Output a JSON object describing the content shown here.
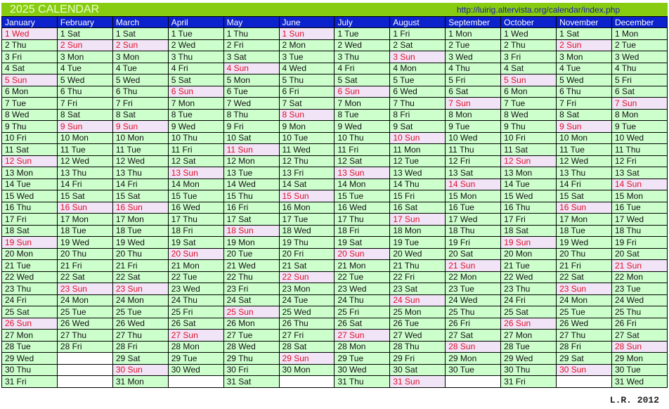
{
  "title": "2025 CALENDAR",
  "url": "http://luirig.altervista.org/calendar/index.php",
  "footer": "L.R. 2012",
  "colors": {
    "title_bar": "#88cc11",
    "header": "#0b22cc",
    "weekday_cell": "#ccffcc",
    "sunday_cell": "#f0e4f6",
    "sunday_text": "#e0102a"
  },
  "holidays": [
    {
      "month": 0,
      "label": "1 Wed"
    }
  ],
  "months": [
    {
      "name": "January",
      "days": [
        "1 Wed",
        "2 Thu",
        "3 Fri",
        "4 Sat",
        "5 Sun",
        "6 Mon",
        "7 Tue",
        "8 Wed",
        "9 Thu",
        "10 Fri",
        "11 Sat",
        "12 Sun",
        "13 Mon",
        "14 Tue",
        "15 Wed",
        "16 Thu",
        "17 Fri",
        "18 Sat",
        "19 Sun",
        "20 Mon",
        "21 Tue",
        "22 Wed",
        "23 Thu",
        "24 Fri",
        "25 Sat",
        "26 Sun",
        "27 Mon",
        "28 Tue",
        "29 Wed",
        "30 Thu",
        "31 Fri"
      ]
    },
    {
      "name": "February",
      "days": [
        "1 Sat",
        "2 Sun",
        "3 Mon",
        "4 Tue",
        "5 Wed",
        "6 Thu",
        "7 Fri",
        "8 Sat",
        "9 Sun",
        "10 Mon",
        "11 Tue",
        "12 Wed",
        "13 Thu",
        "14 Fri",
        "15 Sat",
        "16 Sun",
        "17 Mon",
        "18 Tue",
        "19 Wed",
        "20 Thu",
        "21 Fri",
        "22 Sat",
        "23 Sun",
        "24 Mon",
        "25 Tue",
        "26 Wed",
        "27 Thu",
        "28 Fri"
      ]
    },
    {
      "name": "March",
      "days": [
        "1 Sat",
        "2 Sun",
        "3 Mon",
        "4 Tue",
        "5 Wed",
        "6 Thu",
        "7 Fri",
        "8 Sat",
        "9 Sun",
        "10 Mon",
        "11 Tue",
        "12 Wed",
        "13 Thu",
        "14 Fri",
        "15 Sat",
        "16 Sun",
        "17 Mon",
        "18 Tue",
        "19 Wed",
        "20 Thu",
        "21 Fri",
        "22 Sat",
        "23 Sun",
        "24 Mon",
        "25 Tue",
        "26 Wed",
        "27 Thu",
        "28 Fri",
        "29 Sat",
        "30 Sun",
        "31 Mon"
      ]
    },
    {
      "name": "April",
      "days": [
        "1 Tue",
        "2 Wed",
        "3 Thu",
        "4 Fri",
        "5 Sat",
        "6 Sun",
        "7 Mon",
        "8 Tue",
        "9 Wed",
        "10 Thu",
        "11 Fri",
        "12 Sat",
        "13 Sun",
        "14 Mon",
        "15 Tue",
        "16 Wed",
        "17 Thu",
        "18 Fri",
        "19 Sat",
        "20 Sun",
        "21 Mon",
        "22 Tue",
        "23 Wed",
        "24 Thu",
        "25 Fri",
        "26 Sat",
        "27 Sun",
        "28 Mon",
        "29 Tue",
        "30 Wed"
      ]
    },
    {
      "name": "May",
      "days": [
        "1 Thu",
        "2 Fri",
        "3 Sat",
        "4 Sun",
        "5 Mon",
        "6 Tue",
        "7 Wed",
        "8 Thu",
        "9 Fri",
        "10 Sat",
        "11 Sun",
        "12 Mon",
        "13 Tue",
        "14 Wed",
        "15 Thu",
        "16 Fri",
        "17 Sat",
        "18 Sun",
        "19 Mon",
        "20 Tue",
        "21 Wed",
        "22 Thu",
        "23 Fri",
        "24 Sat",
        "25 Sun",
        "26 Mon",
        "27 Tue",
        "28 Wed",
        "29 Thu",
        "30 Fri",
        "31 Sat"
      ]
    },
    {
      "name": "June",
      "days": [
        "1 Sun",
        "2 Mon",
        "3 Tue",
        "4 Wed",
        "5 Thu",
        "6 Fri",
        "7 Sat",
        "8 Sun",
        "9 Mon",
        "10 Tue",
        "11 Wed",
        "12 Thu",
        "13 Fri",
        "14 Sat",
        "15 Sun",
        "16 Mon",
        "17 Tue",
        "18 Wed",
        "19 Thu",
        "20 Fri",
        "21 Sat",
        "22 Sun",
        "23 Mon",
        "24 Tue",
        "25 Wed",
        "26 Thu",
        "27 Fri",
        "28 Sat",
        "29 Sun",
        "30 Mon"
      ]
    },
    {
      "name": "July",
      "days": [
        "1 Tue",
        "2 Wed",
        "3 Thu",
        "4 Fri",
        "5 Sat",
        "6 Sun",
        "7 Mon",
        "8 Tue",
        "9 Wed",
        "10 Thu",
        "11 Fri",
        "12 Sat",
        "13 Sun",
        "14 Mon",
        "15 Tue",
        "16 Wed",
        "17 Thu",
        "18 Fri",
        "19 Sat",
        "20 Sun",
        "21 Mon",
        "22 Tue",
        "23 Wed",
        "24 Thu",
        "25 Fri",
        "26 Sat",
        "27 Sun",
        "28 Mon",
        "29 Tue",
        "30 Wed",
        "31 Thu"
      ]
    },
    {
      "name": "August",
      "days": [
        "1 Fri",
        "2 Sat",
        "3 Sun",
        "4 Mon",
        "5 Tue",
        "6 Wed",
        "7 Thu",
        "8 Fri",
        "9 Sat",
        "10 Sun",
        "11 Mon",
        "12 Tue",
        "13 Wed",
        "14 Thu",
        "15 Fri",
        "16 Sat",
        "17 Sun",
        "18 Mon",
        "19 Tue",
        "20 Wed",
        "21 Thu",
        "22 Fri",
        "23 Sat",
        "24 Sun",
        "25 Mon",
        "26 Tue",
        "27 Wed",
        "28 Thu",
        "29 Fri",
        "30 Sat",
        "31 Sun"
      ]
    },
    {
      "name": "September",
      "days": [
        "1 Mon",
        "2 Tue",
        "3 Wed",
        "4 Thu",
        "5 Fri",
        "6 Sat",
        "7 Sun",
        "8 Mon",
        "9 Tue",
        "10 Wed",
        "11 Thu",
        "12 Fri",
        "13 Sat",
        "14 Sun",
        "15 Mon",
        "16 Tue",
        "17 Wed",
        "18 Thu",
        "19 Fri",
        "20 Sat",
        "21 Sun",
        "22 Mon",
        "23 Tue",
        "24 Wed",
        "25 Thu",
        "26 Fri",
        "27 Sat",
        "28 Sun",
        "29 Mon",
        "30 Tue"
      ]
    },
    {
      "name": "October",
      "days": [
        "1 Wed",
        "2 Thu",
        "3 Fri",
        "4 Sat",
        "5 Sun",
        "6 Mon",
        "7 Tue",
        "8 Wed",
        "9 Thu",
        "10 Fri",
        "11 Sat",
        "12 Sun",
        "13 Mon",
        "14 Tue",
        "15 Wed",
        "16 Thu",
        "17 Fri",
        "18 Sat",
        "19 Sun",
        "20 Mon",
        "21 Tue",
        "22 Wed",
        "23 Thu",
        "24 Fri",
        "25 Sat",
        "26 Sun",
        "27 Mon",
        "28 Tue",
        "29 Wed",
        "30 Thu",
        "31 Fri"
      ]
    },
    {
      "name": "November",
      "days": [
        "1 Sat",
        "2 Sun",
        "3 Mon",
        "4 Tue",
        "5 Wed",
        "6 Thu",
        "7 Fri",
        "8 Sat",
        "9 Sun",
        "10 Mon",
        "11 Tue",
        "12 Wed",
        "13 Thu",
        "14 Fri",
        "15 Sat",
        "16 Sun",
        "17 Mon",
        "18 Tue",
        "19 Wed",
        "20 Thu",
        "21 Fri",
        "22 Sat",
        "23 Sun",
        "24 Mon",
        "25 Tue",
        "26 Wed",
        "27 Thu",
        "28 Fri",
        "29 Sat",
        "30 Sun"
      ]
    },
    {
      "name": "December",
      "days": [
        "1 Mon",
        "2 Tue",
        "3 Wed",
        "4 Thu",
        "5 Fri",
        "6 Sat",
        "7 Sun",
        "8 Mon",
        "9 Tue",
        "10 Wed",
        "11 Thu",
        "12 Fri",
        "13 Sat",
        "14 Sun",
        "15 Mon",
        "16 Tue",
        "17 Wed",
        "18 Thu",
        "19 Fri",
        "20 Sat",
        "21 Sun",
        "22 Mon",
        "23 Tue",
        "24 Wed",
        "25 Thu",
        "26 Fri",
        "27 Sat",
        "28 Sun",
        "29 Mon",
        "30 Tue",
        "31 Wed"
      ]
    }
  ]
}
